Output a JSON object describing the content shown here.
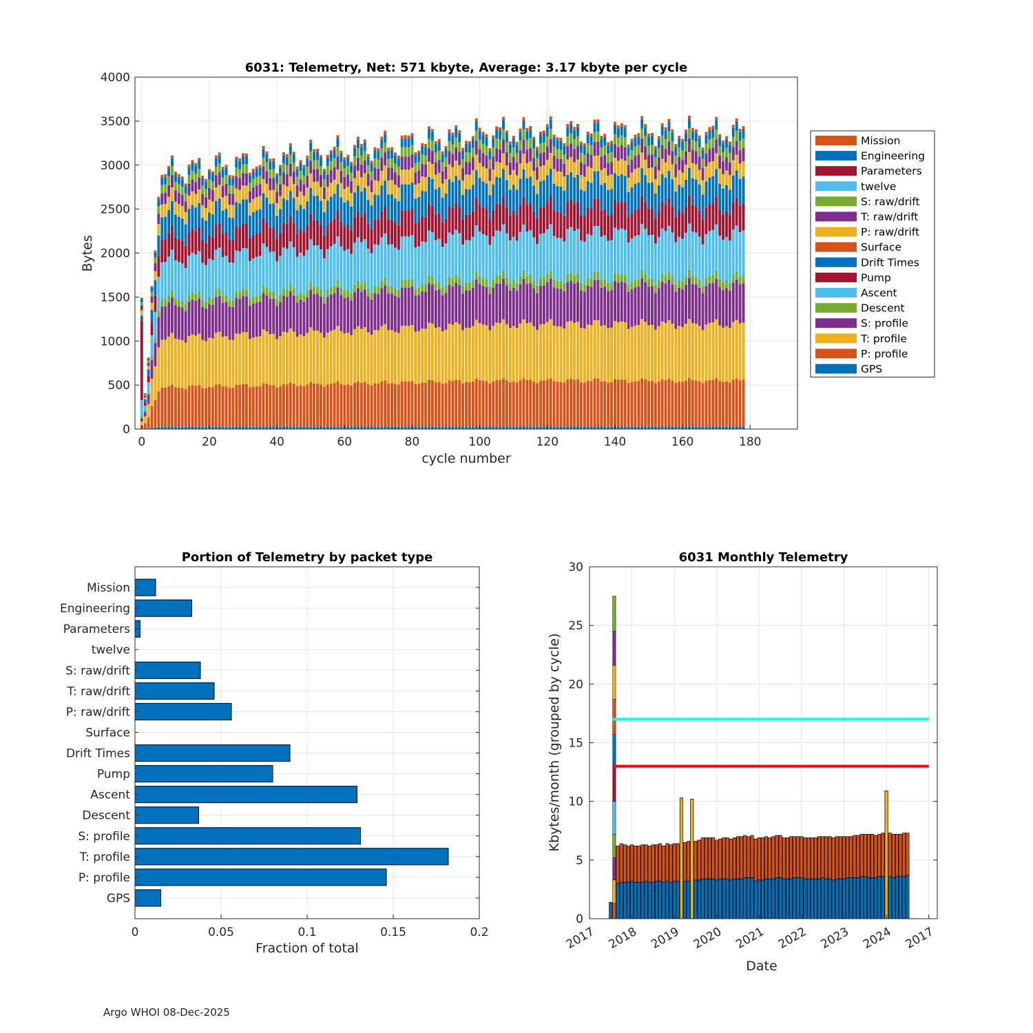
{
  "footer": "Argo WHOI 08-Dec-2025",
  "colors": {
    "blue": "#0072bd",
    "orange": "#d95319",
    "yellow": "#edb120",
    "purple": "#7e2f8e",
    "green": "#77ac30",
    "cyan": "#4dbeee",
    "crimson": "#a2142f",
    "ref_cyan": "#00ffff",
    "ref_red": "#ff0000"
  },
  "chart_data": [
    {
      "id": "top",
      "type": "bar",
      "stacked": true,
      "title": "6031: Telemetry, Net:    571 kbyte,  Average: 3.17 kbyte per cycle",
      "xlabel": "cycle number",
      "ylabel": "Bytes",
      "xlim": [
        -2,
        194
      ],
      "ylim": [
        0,
        4000
      ],
      "xticks": [
        0,
        20,
        40,
        60,
        80,
        100,
        120,
        140,
        160,
        180
      ],
      "yticks": [
        0,
        500,
        1000,
        1500,
        2000,
        2500,
        3000,
        3500,
        4000
      ],
      "grid": true,
      "legend_position": "right",
      "legend": [
        "Mission",
        "Engineering",
        "Parameters",
        "twelve",
        "S: raw/drift",
        "T: raw/drift",
        "P: raw/drift",
        "Surface",
        "Drift Times",
        "Pump",
        "Ascent",
        "Descent",
        "S: profile",
        "T: profile",
        "P: profile",
        "GPS"
      ],
      "n_cycles": 179,
      "cycle_start": 0,
      "bars_nearly_full_width": true,
      "typical_layer_bytes_cycle_100": {
        "GPS": 30,
        "P: profile": 520,
        "T: profile": 640,
        "S: profile": 440,
        "Descent": 90,
        "Ascent": 500,
        "Pump": 300,
        "Drift Times": 300,
        "Surface": 0,
        "P: raw/drift": 170,
        "T: raw/drift": 150,
        "S: raw/drift": 110,
        "twelve": 0,
        "Parameters": 0,
        "Engineering": 100,
        "Mission": 35
      },
      "total_bytes_range": [
        380,
        3600
      ]
    },
    {
      "id": "bottom-left",
      "type": "bar",
      "orientation": "horizontal",
      "title": "Portion of Telemetry by packet type",
      "xlabel": "Fraction of total",
      "ylabel": "",
      "xlim": [
        0,
        0.2
      ],
      "xticks": [
        0,
        0.05,
        0.1,
        0.15,
        0.2
      ],
      "xtick_labels": [
        "0",
        "0.05",
        "0.1",
        "0.15",
        "0.2"
      ],
      "grid": true,
      "categories": [
        "Mission",
        "Engineering",
        "Parameters",
        "twelve",
        "S: raw/drift",
        "T: raw/drift",
        "P: raw/drift",
        "Surface",
        "Drift Times",
        "Pump",
        "Ascent",
        "Descent",
        "S: profile",
        "T: profile",
        "P: profile",
        "GPS"
      ],
      "values": [
        0.012,
        0.033,
        0.003,
        0,
        0.038,
        0.046,
        0.056,
        0,
        0.09,
        0.08,
        0.129,
        0.037,
        0.131,
        0.182,
        0.146,
        0.015
      ]
    },
    {
      "id": "bottom-right",
      "type": "bar",
      "stacked": true,
      "title": "6031 Monthly Telemetry",
      "xlabel": "Date",
      "ylabel": "Kbytes/month (grouped by cycle)",
      "xlim": [
        2017.0,
        2025.2
      ],
      "ylim": [
        0,
        30
      ],
      "yticks": [
        0,
        5,
        10,
        15,
        20,
        25,
        30
      ],
      "xtick_labels": [
        "2017",
        "2018",
        "2019",
        "2020",
        "2021",
        "2022",
        "2023",
        "2024",
        "2017"
      ],
      "grid": true,
      "reference_lines": [
        {
          "value": 17,
          "color": "cyan"
        },
        {
          "value": 13,
          "color": "red"
        }
      ],
      "first_month_stack_kbytes": [
        {
          "name": "P: profile",
          "value": 1.3
        },
        {
          "name": "T: profile",
          "value": 2.0
        },
        {
          "name": "S: profile",
          "value": 1.9
        },
        {
          "name": "Descent",
          "value": 2.0
        },
        {
          "name": "Ascent",
          "value": 2.8
        },
        {
          "name": "Pump",
          "value": 2.9
        },
        {
          "name": "Drift Times",
          "value": 2.8
        },
        {
          "name": "Surface",
          "value": 3.0
        },
        {
          "name": "P: raw/drift",
          "value": 2.9
        },
        {
          "name": "T: raw/drift",
          "value": 2.9
        },
        {
          "name": "S: raw/drift",
          "value": 3.0
        }
      ],
      "series": [
        {
          "name": "lower (blue)",
          "values": [
            1.4,
            0,
            3.0,
            3.1,
            3.1,
            3.1,
            3.2,
            3.1,
            3.1,
            3.1,
            3.2,
            3.1,
            3.1,
            3.2,
            3.2,
            3.1,
            3.2,
            3.1,
            3.2,
            3.2,
            3.3,
            3.2,
            3.2,
            3.3,
            3.3,
            3.3,
            3.4,
            3.4,
            3.4,
            3.4,
            3.3,
            3.4,
            3.4,
            3.4,
            3.3,
            3.4,
            3.4,
            3.4,
            3.5,
            3.5,
            3.5,
            3.2,
            3.3,
            3.3,
            3.4,
            3.4,
            3.4,
            3.5,
            3.5,
            3.4,
            3.4,
            3.4,
            3.5,
            3.5,
            3.5,
            3.4,
            3.4,
            3.4,
            3.4,
            3.4,
            3.5,
            3.4,
            3.4,
            3.3,
            3.4,
            3.4,
            3.4,
            3.5,
            3.5,
            3.5,
            3.5,
            3.6,
            3.6,
            3.5,
            3.5,
            3.5,
            3.6,
            3.6,
            3.6,
            3.6,
            3.5,
            3.6,
            3.6,
            3.6,
            3.7
          ]
        },
        {
          "name": "upper (orange)",
          "values": [
            0,
            0,
            3.2,
            3.3,
            3.2,
            3.1,
            3.1,
            3.1,
            3.1,
            3.2,
            3.1,
            3.1,
            3.2,
            3.1,
            3.2,
            3.1,
            3.2,
            3.2,
            3.2,
            3.2,
            3.3,
            3.3,
            3.4,
            3.3,
            3.3,
            3.4,
            3.5,
            3.5,
            3.5,
            3.5,
            3.4,
            3.4,
            3.5,
            3.5,
            3.5,
            3.5,
            3.6,
            3.6,
            3.6,
            3.5,
            3.6,
            3.6,
            3.6,
            3.6,
            3.6,
            3.5,
            3.6,
            3.6,
            3.6,
            3.5,
            3.5,
            3.6,
            3.5,
            3.5,
            3.5,
            3.5,
            3.5,
            3.5,
            3.5,
            3.6,
            3.5,
            3.6,
            3.6,
            3.6,
            3.6,
            3.6,
            3.6,
            3.5,
            3.5,
            3.6,
            3.6,
            3.6,
            3.6,
            3.7,
            3.7,
            3.6,
            3.6,
            3.7,
            3.7,
            3.7,
            3.7,
            3.6,
            3.6,
            3.7,
            3.6
          ]
        }
      ],
      "spikes": [
        {
          "month_index": 20,
          "value": 10.3
        },
        {
          "month_index": 23,
          "value": 10.2
        },
        {
          "month_index": 78,
          "value": 10.9
        }
      ]
    }
  ]
}
